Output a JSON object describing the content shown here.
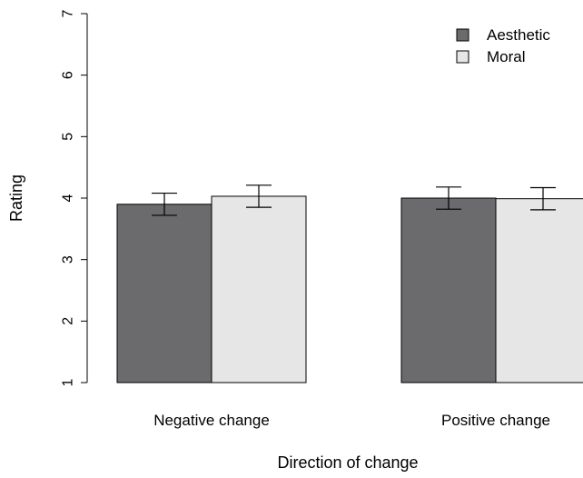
{
  "chart_data": {
    "type": "bar",
    "title": "",
    "xlabel": "Direction of change",
    "ylabel": "Rating",
    "ylim": [
      1,
      7
    ],
    "yticks": [
      1,
      2,
      3,
      4,
      5,
      6,
      7
    ],
    "categories": [
      "Negative change",
      "Positive change"
    ],
    "series": [
      {
        "name": "Aesthetic",
        "color": "#6b6b6e",
        "values": [
          3.9,
          4.0
        ],
        "error": [
          0.18,
          0.18
        ]
      },
      {
        "name": "Moral",
        "color": "#e6e6e6",
        "values": [
          4.03,
          3.99
        ],
        "error": [
          0.18,
          0.18
        ]
      }
    ],
    "grid": false,
    "legend_position": "top-right"
  }
}
